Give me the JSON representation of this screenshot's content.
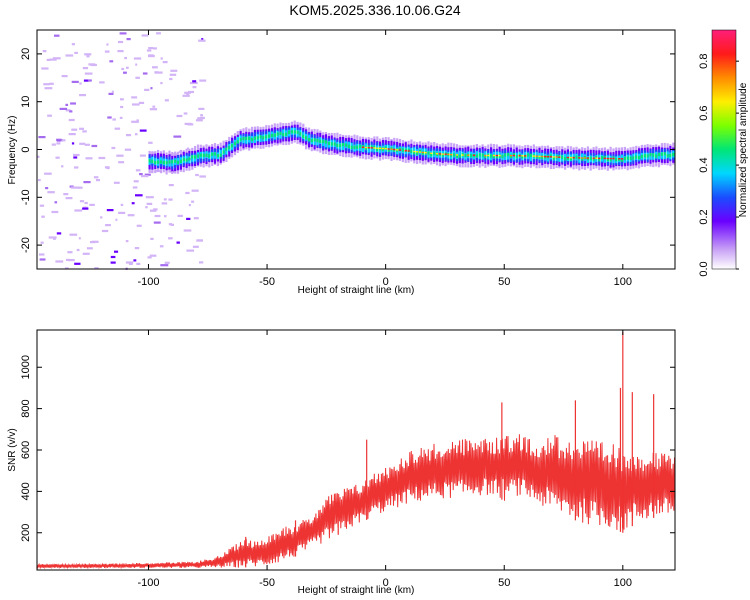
{
  "title": "KOM5.2025.336.10.06.G24",
  "chart_data": [
    {
      "type": "heatmap",
      "xlabel": "Height of straight line (km)",
      "ylabel": "Frequency (Hz)",
      "xlim": [
        -147,
        122
      ],
      "ylim": [
        -25,
        25
      ],
      "xticks": [
        -100,
        -50,
        0,
        50,
        100
      ],
      "yticks": [
        -20,
        -10,
        0,
        10,
        20
      ],
      "xtick_labels": [
        "-100",
        "-50",
        "0",
        "50",
        "100"
      ],
      "ytick_labels": [
        "-20",
        "-10",
        "0",
        "10",
        "20"
      ],
      "colorbar": {
        "label": "Normalized spectral amplitude",
        "range": [
          0,
          0.92
        ],
        "ticks": [
          0,
          0.2,
          0.4,
          0.6,
          0.8
        ],
        "tick_labels": [
          "0.0",
          "0.2",
          "0.4",
          "0.6",
          "0.8"
        ]
      },
      "ridge": [
        {
          "x": -100,
          "y": -2.4
        },
        {
          "x": -90,
          "y": -2.8
        },
        {
          "x": -80,
          "y": -1.5
        },
        {
          "x": -70,
          "y": -1.0
        },
        {
          "x": -62,
          "y": 2.0
        },
        {
          "x": -55,
          "y": 2.3
        },
        {
          "x": -45,
          "y": 3.2
        },
        {
          "x": -38,
          "y": 3.7
        },
        {
          "x": -32,
          "y": 2.0
        },
        {
          "x": -20,
          "y": 0.9
        },
        {
          "x": -10,
          "y": 0.4
        },
        {
          "x": 0,
          "y": 0.1
        },
        {
          "x": 10,
          "y": -0.4
        },
        {
          "x": 20,
          "y": -0.9
        },
        {
          "x": 30,
          "y": -1.2
        },
        {
          "x": 40,
          "y": -1.3
        },
        {
          "x": 50,
          "y": -1.3
        },
        {
          "x": 60,
          "y": -1.4
        },
        {
          "x": 70,
          "y": -1.6
        },
        {
          "x": 80,
          "y": -1.8
        },
        {
          "x": 90,
          "y": -1.9
        },
        {
          "x": 100,
          "y": -2.0
        },
        {
          "x": 110,
          "y": -1.3
        },
        {
          "x": 122,
          "y": -1.0
        }
      ]
    },
    {
      "type": "line",
      "xlabel": "Height of straight line (km)",
      "ylabel": "SNR (v/v)",
      "xlim": [
        -147,
        122
      ],
      "ylim": [
        20,
        1180
      ],
      "xticks": [
        -100,
        -50,
        0,
        50,
        100
      ],
      "yticks": [
        200,
        400,
        600,
        800,
        1000
      ],
      "xtick_labels": [
        "-100",
        "-50",
        "0",
        "50",
        "100"
      ],
      "ytick_labels": [
        "200",
        "400",
        "600",
        "800",
        "1000"
      ],
      "series": [
        {
          "color": "#ee3333",
          "x": [
            -147,
            -120,
            -100,
            -80,
            -70,
            -65,
            -60,
            -55,
            -50,
            -45,
            -40,
            -35,
            -30,
            -25,
            -20,
            -15,
            -10,
            -5,
            0,
            5,
            10,
            15,
            20,
            25,
            30,
            35,
            40,
            45,
            48,
            50,
            55,
            60,
            65,
            70,
            75,
            80,
            85,
            90,
            95,
            100,
            105,
            110,
            115,
            122
          ],
          "y": [
            40,
            40,
            40,
            45,
            50,
            65,
            80,
            95,
            110,
            135,
            160,
            190,
            215,
            240,
            265,
            285,
            310,
            350,
            380,
            420,
            460,
            480,
            500,
            510,
            520,
            525,
            525,
            520,
            520,
            700,
            600,
            560,
            550,
            540,
            530,
            520,
            510,
            500,
            490,
            480,
            470,
            460,
            450,
            440
          ],
          "min_y": [
            30,
            30,
            30,
            30,
            30,
            30,
            32,
            35,
            40,
            55,
            75,
            100,
            130,
            160,
            190,
            220,
            250,
            280,
            300,
            320,
            340,
            350,
            360,
            365,
            370,
            375,
            380,
            380,
            370,
            350,
            380,
            360,
            330,
            300,
            280,
            260,
            240,
            230,
            220,
            200,
            240,
            260,
            280,
            280
          ],
          "max_y": [
            50,
            50,
            55,
            60,
            90,
            130,
            180,
            160,
            190,
            230,
            240,
            260,
            300,
            380,
            420,
            480,
            500,
            530,
            560,
            580,
            600,
            620,
            630,
            640,
            650,
            660,
            670,
            670,
            850,
            680,
            680,
            670,
            660,
            680,
            700,
            780,
            750,
            800,
            760,
            1170,
            820,
            870,
            700,
            680
          ],
          "spikes": [
            {
              "x": -59,
              "y": 180
            },
            {
              "x": -38,
              "y": 260
            },
            {
              "x": -20,
              "y": 350
            },
            {
              "x": -8,
              "y": 650
            },
            {
              "x": 49,
              "y": 830
            },
            {
              "x": 80,
              "y": 840
            },
            {
              "x": 99,
              "y": 900
            },
            {
              "x": 100,
              "y": 1170
            },
            {
              "x": 104,
              "y": 880
            },
            {
              "x": 113,
              "y": 870
            }
          ]
        }
      ]
    }
  ]
}
